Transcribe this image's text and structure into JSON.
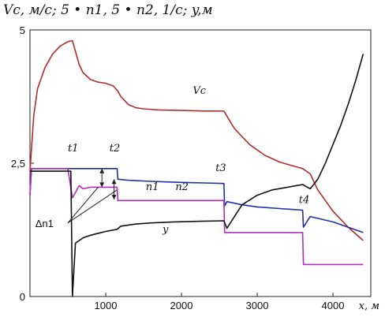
{
  "chart_data": {
    "type": "line",
    "title": "Vc, м/с; 5 • n1, 5 • n2, 1/с; y,м",
    "xlabel": "x, м",
    "xlim": [
      0,
      4500
    ],
    "ylim": [
      0,
      5
    ],
    "x_ticks": [
      "1000",
      "2000",
      "3000",
      "4000"
    ],
    "y_ticks": [
      "0",
      "2,5",
      "5"
    ],
    "grid": false,
    "legend": "none",
    "series": [
      {
        "name": "Vc",
        "color": "#b22c2c",
        "x": [
          0,
          50,
          100,
          200,
          300,
          400,
          500,
          560,
          600,
          650,
          700,
          800,
          900,
          1000,
          1100,
          1160,
          1200,
          1300,
          1400,
          1500,
          1700,
          2000,
          2300,
          2560,
          2700,
          2900,
          3100,
          3300,
          3500,
          3600,
          3700,
          3800,
          4000,
          4200,
          4400
        ],
        "y": [
          2.35,
          3.4,
          3.9,
          4.3,
          4.55,
          4.7,
          4.78,
          4.8,
          4.6,
          4.35,
          4.2,
          4.07,
          4.02,
          4.0,
          3.95,
          3.85,
          3.75,
          3.6,
          3.54,
          3.52,
          3.5,
          3.49,
          3.48,
          3.48,
          3.15,
          2.85,
          2.65,
          2.52,
          2.44,
          2.4,
          2.3,
          2.0,
          1.6,
          1.3,
          1.05
        ]
      },
      {
        "name": "n1",
        "color": "#1f2fa8",
        "x": [
          0,
          20,
          100,
          300,
          600,
          900,
          1150,
          1160,
          1300,
          1600,
          1800,
          2000,
          2300,
          2560,
          2570,
          2600,
          2800,
          3000,
          3300,
          3500,
          3600,
          3610,
          3700,
          4000,
          4200,
          4400
        ],
        "y": [
          1.9,
          2.4,
          2.4,
          2.4,
          2.4,
          2.4,
          2.4,
          2.2,
          2.18,
          2.16,
          2.15,
          2.14,
          2.13,
          2.12,
          1.7,
          1.78,
          1.72,
          1.68,
          1.65,
          1.63,
          1.62,
          1.3,
          1.5,
          1.4,
          1.3,
          1.2
        ]
      },
      {
        "name": "n2",
        "color": "#b02cc0",
        "x": [
          0,
          20,
          100,
          400,
          500,
          560,
          600,
          650,
          700,
          800,
          1000,
          1150,
          1160,
          1400,
          1800,
          2200,
          2560,
          2570,
          3000,
          3600,
          3610,
          4400
        ],
        "y": [
          1.9,
          2.4,
          2.4,
          2.4,
          2.4,
          1.85,
          1.95,
          2.08,
          2.02,
          2.05,
          2.05,
          2.05,
          1.8,
          1.8,
          1.8,
          1.8,
          1.8,
          1.2,
          1.2,
          1.2,
          0.6,
          0.6
        ]
      },
      {
        "name": "y",
        "color": "#111111",
        "x": [
          0,
          50,
          100,
          300,
          500,
          540,
          560,
          600,
          700,
          800,
          1000,
          1150,
          1200,
          1400,
          1600,
          1900,
          2200,
          2560,
          2600,
          2700,
          2800,
          3000,
          3200,
          3400,
          3600,
          3700,
          3800,
          3900,
          4000,
          4100,
          4200,
          4300,
          4400
        ],
        "y": [
          2.35,
          2.35,
          2.35,
          2.35,
          2.35,
          2.35,
          0.0,
          1.0,
          1.1,
          1.15,
          1.22,
          1.26,
          1.32,
          1.36,
          1.38,
          1.4,
          1.41,
          1.42,
          1.28,
          1.5,
          1.72,
          1.9,
          2.0,
          2.05,
          2.1,
          2.02,
          2.2,
          2.5,
          2.85,
          3.2,
          3.6,
          4.05,
          4.55
        ]
      }
    ],
    "annotations": [
      {
        "text": "Vc",
        "x": 2150,
        "y": 3.8
      },
      {
        "text": "t1",
        "x": 500,
        "y": 2.72
      },
      {
        "text": "t2",
        "x": 1050,
        "y": 2.72
      },
      {
        "text": "t3",
        "x": 2450,
        "y": 2.35
      },
      {
        "text": "t4",
        "x": 3550,
        "y": 1.75
      },
      {
        "text": "n1",
        "x": 1530,
        "y": 2.0
      },
      {
        "text": "n2",
        "x": 1920,
        "y": 2.0
      },
      {
        "text": "y",
        "x": 1750,
        "y": 1.2
      },
      {
        "text": "Δn1",
        "x": 70,
        "y": 1.3
      }
    ]
  }
}
